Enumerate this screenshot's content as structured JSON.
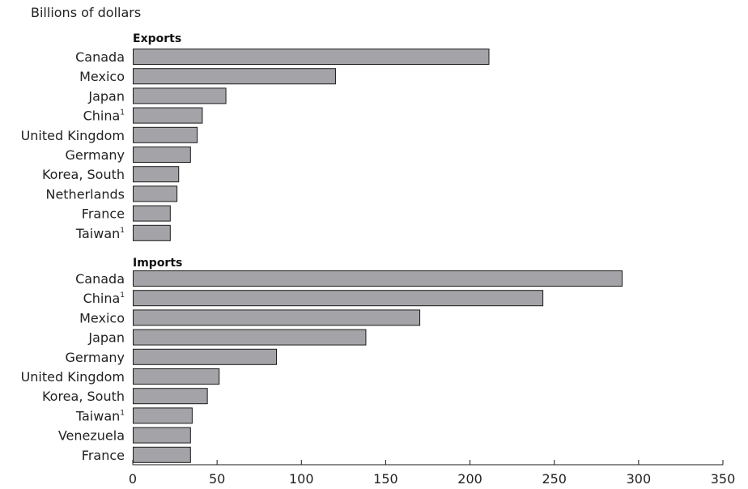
{
  "chart_data": {
    "type": "bar",
    "orientation": "horizontal",
    "unit_label": "Billions of dollars",
    "xlim": [
      0,
      350
    ],
    "x_ticks": [
      "0",
      "50",
      "100",
      "150",
      "200",
      "250",
      "300",
      "350"
    ],
    "bar_color": "#a4a4a8",
    "panels": [
      {
        "title": "Exports",
        "categories": [
          "Canada",
          "Mexico",
          "Japan",
          "China",
          "United Kingdom",
          "Germany",
          "Korea, South",
          "Netherlands",
          "France",
          "Taiwan"
        ],
        "superscripts": [
          "",
          "",
          "",
          "1",
          "",
          "",
          "",
          "",
          "",
          "1"
        ],
        "values": [
          211,
          120,
          55,
          41,
          38,
          34,
          27,
          26,
          22,
          22
        ]
      },
      {
        "title": "Imports",
        "categories": [
          "Canada",
          "China",
          "Mexico",
          "Japan",
          "Germany",
          "United Kingdom",
          "Korea, South",
          "Taiwan",
          "Venezuela",
          "France"
        ],
        "superscripts": [
          "",
          "1",
          "",
          "",
          "",
          "",
          "",
          "1",
          "",
          ""
        ],
        "values": [
          290,
          243,
          170,
          138,
          85,
          51,
          44,
          35,
          34,
          34
        ]
      }
    ]
  }
}
